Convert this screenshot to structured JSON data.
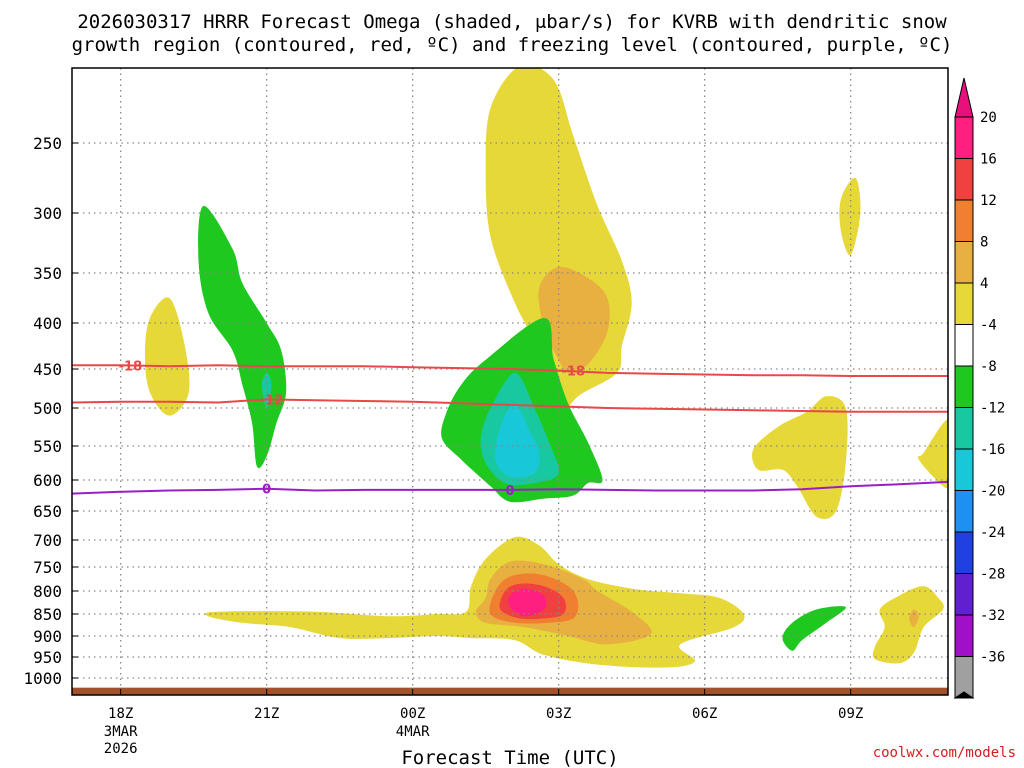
{
  "chart_data": {
    "type": "contour",
    "title_lines": [
      "2026030317 HRRR Forecast Omega (shaded, μbar/s) for KVRB with dendritic snow",
      "growth region (contoured, red, ºC) and freezing level (contoured, purple, ºC)"
    ],
    "xlabel": "Forecast Time (UTC)",
    "x_ticks": [
      {
        "label": "18Z",
        "hour": 0,
        "sub": [
          "3MAR",
          "2026"
        ]
      },
      {
        "label": "21Z",
        "hour": 3,
        "sub": []
      },
      {
        "label": "00Z",
        "hour": 6,
        "sub": [
          "4MAR"
        ]
      },
      {
        "label": "03Z",
        "hour": 9,
        "sub": []
      },
      {
        "label": "06Z",
        "hour": 12,
        "sub": []
      },
      {
        "label": "09Z",
        "hour": 15,
        "sub": []
      }
    ],
    "xlim_hours": [
      -1,
      17
    ],
    "y_ticks": [
      250,
      300,
      350,
      400,
      450,
      500,
      550,
      600,
      650,
      700,
      750,
      800,
      850,
      900,
      950,
      1000
    ],
    "ylim_hpa": [
      200,
      1040
    ],
    "colorbar": {
      "labels": [
        "20",
        "16",
        "12",
        "8",
        "4",
        "-4",
        "-8",
        "-12",
        "-16",
        "-20",
        "-24",
        "-28",
        "-32",
        "-36"
      ],
      "colors": [
        "#ff1f80",
        "#f04040",
        "#f08030",
        "#e8b040",
        "#e6d838",
        "#ffffff",
        "#1ec81e",
        "#18c8a0",
        "#18c8d8",
        "#1e90f0",
        "#2040e0",
        "#6020d0",
        "#a010c8",
        "#a0a0a0"
      ],
      "top_arrow_color": "#e8107a",
      "bottom_arrow_color": "#000000"
    },
    "regions": [
      {
        "name": "yellow-plume-upper",
        "range": "4 to 8",
        "color": "#e6d838",
        "points": [
          [
            8.9,
            205
          ],
          [
            9.3,
            245
          ],
          [
            9.8,
            295
          ],
          [
            10.3,
            340
          ],
          [
            10.5,
            380
          ],
          [
            10.3,
            425
          ],
          [
            10.2,
            455
          ],
          [
            9.4,
            485
          ],
          [
            8.9,
            520
          ],
          [
            8.7,
            470
          ],
          [
            8.6,
            430
          ],
          [
            8.1,
            380
          ],
          [
            7.6,
            320
          ],
          [
            7.5,
            270
          ],
          [
            7.6,
            225
          ],
          [
            8.2,
            195
          ]
        ]
      },
      {
        "name": "orange-core-upper",
        "range": "8 to 12",
        "color": "#e8b040",
        "points": [
          [
            9.0,
            345
          ],
          [
            9.6,
            355
          ],
          [
            10.0,
            375
          ],
          [
            10.0,
            410
          ],
          [
            9.6,
            445
          ],
          [
            9.2,
            455
          ],
          [
            9.0,
            440
          ],
          [
            8.7,
            405
          ],
          [
            8.6,
            365
          ]
        ]
      },
      {
        "name": "yellow-left-plume",
        "range": "4 to 8",
        "color": "#e6d838",
        "points": [
          [
            1.0,
            375
          ],
          [
            1.3,
            420
          ],
          [
            1.4,
            480
          ],
          [
            1.0,
            510
          ],
          [
            0.6,
            480
          ],
          [
            0.5,
            435
          ],
          [
            0.6,
            395
          ]
        ]
      },
      {
        "name": "yellow-right-blob",
        "range": "4 to 8",
        "color": "#e6d838",
        "points": [
          [
            13.5,
            525
          ],
          [
            14.1,
            505
          ],
          [
            14.5,
            485
          ],
          [
            14.9,
            500
          ],
          [
            14.9,
            575
          ],
          [
            14.7,
            650
          ],
          [
            14.3,
            660
          ],
          [
            13.9,
            610
          ],
          [
            13.6,
            585
          ],
          [
            13.1,
            585
          ],
          [
            13.0,
            555
          ]
        ]
      },
      {
        "name": "yellow-small-top-right",
        "range": "4 to 8",
        "color": "#e6d838",
        "points": [
          [
            14.8,
            290
          ],
          [
            15.1,
            275
          ],
          [
            15.2,
            300
          ],
          [
            15.0,
            335
          ],
          [
            14.8,
            315
          ]
        ]
      },
      {
        "name": "yellow-far-right",
        "range": "4 to 8",
        "color": "#e6d838",
        "points": [
          [
            16.5,
            560
          ],
          [
            16.9,
            520
          ],
          [
            17.0,
            525
          ],
          [
            17.0,
            600
          ],
          [
            16.9,
            610
          ],
          [
            16.4,
            570
          ]
        ]
      },
      {
        "name": "yellow-lower-broad",
        "range": "4 to 8",
        "color": "#e6d838",
        "points": [
          [
            2.0,
            845
          ],
          [
            4.0,
            845
          ],
          [
            5.5,
            855
          ],
          [
            6.5,
            850
          ],
          [
            7.1,
            845
          ],
          [
            7.2,
            790
          ],
          [
            7.5,
            735
          ],
          [
            8.1,
            695
          ],
          [
            8.6,
            710
          ],
          [
            9.0,
            745
          ],
          [
            9.6,
            775
          ],
          [
            10.5,
            795
          ],
          [
            11.5,
            805
          ],
          [
            12.3,
            815
          ],
          [
            12.8,
            850
          ],
          [
            12.6,
            880
          ],
          [
            11.5,
            920
          ],
          [
            11.8,
            960
          ],
          [
            11.2,
            975
          ],
          [
            9.8,
            968
          ],
          [
            8.7,
            945
          ],
          [
            8.1,
            910
          ],
          [
            7.2,
            905
          ],
          [
            6.5,
            900
          ],
          [
            5.5,
            905
          ],
          [
            4.5,
            905
          ],
          [
            3.5,
            880
          ],
          [
            2.5,
            870
          ],
          [
            1.8,
            855
          ]
        ]
      },
      {
        "name": "orange-lower",
        "range": "8 to 12",
        "color": "#e8b040",
        "points": [
          [
            7.5,
            815
          ],
          [
            7.6,
            775
          ],
          [
            8.0,
            740
          ],
          [
            8.7,
            745
          ],
          [
            9.5,
            775
          ],
          [
            9.8,
            800
          ],
          [
            10.5,
            845
          ],
          [
            10.9,
            895
          ],
          [
            10.0,
            920
          ],
          [
            9.2,
            900
          ],
          [
            8.3,
            880
          ],
          [
            7.5,
            870
          ],
          [
            7.3,
            845
          ]
        ]
      },
      {
        "name": "dark-orange-lower",
        "range": "12 to 16",
        "color": "#f08030",
        "points": [
          [
            7.7,
            800
          ],
          [
            8.0,
            770
          ],
          [
            8.6,
            765
          ],
          [
            9.2,
            790
          ],
          [
            9.4,
            825
          ],
          [
            9.3,
            860
          ],
          [
            8.8,
            870
          ],
          [
            8.1,
            870
          ],
          [
            7.6,
            850
          ]
        ]
      },
      {
        "name": "red-lower",
        "range": "16 to 20",
        "color": "#f04040",
        "points": [
          [
            7.9,
            800
          ],
          [
            8.2,
            785
          ],
          [
            8.7,
            790
          ],
          [
            9.1,
            815
          ],
          [
            9.1,
            850
          ],
          [
            8.7,
            860
          ],
          [
            8.2,
            860
          ],
          [
            7.8,
            840
          ]
        ]
      },
      {
        "name": "magenta-lower",
        "range": "above 20",
        "color": "#ff1f80",
        "points": [
          [
            8.0,
            810
          ],
          [
            8.3,
            795
          ],
          [
            8.7,
            810
          ],
          [
            8.7,
            840
          ],
          [
            8.3,
            855
          ],
          [
            8.0,
            835
          ]
        ]
      },
      {
        "name": "yellow-lower-right",
        "range": "4 to 8",
        "color": "#e6d838",
        "points": [
          [
            16.0,
            810
          ],
          [
            16.5,
            790
          ],
          [
            16.8,
            815
          ],
          [
            16.9,
            840
          ],
          [
            16.5,
            880
          ],
          [
            16.3,
            940
          ],
          [
            16.0,
            965
          ],
          [
            15.5,
            955
          ],
          [
            15.5,
            925
          ],
          [
            15.7,
            880
          ],
          [
            15.6,
            840
          ]
        ]
      },
      {
        "name": "orange-lower-right",
        "range": "8 to 12",
        "color": "#e8b040",
        "points": [
          [
            16.3,
            840
          ],
          [
            16.4,
            855
          ],
          [
            16.3,
            880
          ],
          [
            16.2,
            860
          ]
        ]
      },
      {
        "name": "green-left-streak",
        "range": "-4 to -8",
        "color": "#1ec81e",
        "points": [
          [
            1.7,
            295
          ],
          [
            2.3,
            330
          ],
          [
            2.5,
            360
          ],
          [
            3.0,
            400
          ],
          [
            3.3,
            430
          ],
          [
            3.4,
            480
          ],
          [
            3.2,
            520
          ],
          [
            3.0,
            565
          ],
          [
            2.8,
            580
          ],
          [
            2.7,
            520
          ],
          [
            2.5,
            470
          ],
          [
            2.3,
            430
          ],
          [
            1.8,
            390
          ],
          [
            1.6,
            340
          ]
        ]
      },
      {
        "name": "teal-left-streak",
        "range": "-8 to -12",
        "color": "#18c8a0",
        "points": [
          [
            3.0,
            455
          ],
          [
            3.1,
            470
          ],
          [
            3.0,
            500
          ],
          [
            2.9,
            470
          ]
        ]
      },
      {
        "name": "green-center",
        "range": "-4 to -8",
        "color": "#1ec81e",
        "points": [
          [
            8.7,
            395
          ],
          [
            8.9,
            440
          ],
          [
            9.2,
            495
          ],
          [
            9.6,
            545
          ],
          [
            9.9,
            600
          ],
          [
            9.6,
            605
          ],
          [
            9.3,
            625
          ],
          [
            8.7,
            630
          ],
          [
            8.0,
            635
          ],
          [
            7.6,
            610
          ],
          [
            7.3,
            590
          ],
          [
            7.0,
            570
          ],
          [
            6.6,
            540
          ],
          [
            6.7,
            505
          ],
          [
            7.0,
            470
          ],
          [
            7.5,
            440
          ]
        ]
      },
      {
        "name": "teal-center",
        "range": "-8 to -12",
        "color": "#18c8a0",
        "points": [
          [
            8.1,
            455
          ],
          [
            8.5,
            500
          ],
          [
            8.8,
            545
          ],
          [
            9.0,
            590
          ],
          [
            8.5,
            605
          ],
          [
            7.9,
            605
          ],
          [
            7.5,
            575
          ],
          [
            7.4,
            540
          ],
          [
            7.6,
            500
          ]
        ]
      },
      {
        "name": "cyan-center",
        "range": "-12 to -16",
        "color": "#18c8d8",
        "points": [
          [
            8.1,
            495
          ],
          [
            8.4,
            530
          ],
          [
            8.6,
            560
          ],
          [
            8.5,
            590
          ],
          [
            8.0,
            595
          ],
          [
            7.7,
            570
          ],
          [
            7.8,
            525
          ]
        ]
      },
      {
        "name": "green-lower-right",
        "range": "-4 to -8",
        "color": "#1ec81e",
        "points": [
          [
            13.8,
            870
          ],
          [
            14.3,
            840
          ],
          [
            14.9,
            835
          ],
          [
            14.5,
            870
          ],
          [
            14.0,
            910
          ],
          [
            13.8,
            935
          ],
          [
            13.6,
            905
          ]
        ]
      }
    ],
    "contours": [
      {
        "name": "dgz--18",
        "label": "-18",
        "color": "#e84848",
        "x": [
          -1,
          0,
          1,
          2,
          3,
          4,
          5,
          6,
          7,
          8,
          9,
          10,
          11,
          12,
          13,
          14,
          15,
          16,
          17
        ],
        "hpa": [
          446,
          446,
          447,
          446,
          447,
          447,
          447,
          448,
          449,
          450,
          452,
          455,
          456,
          457,
          458,
          458,
          459,
          459,
          459
        ],
        "label_positions": [
          [
            0.2,
            446
          ],
          [
            9.3,
            452
          ]
        ]
      },
      {
        "name": "dgz--12",
        "label": "-12",
        "color": "#e84848",
        "x": [
          -1,
          0,
          1,
          2,
          3,
          4,
          5,
          6,
          7,
          8,
          9,
          10,
          11,
          12,
          13,
          14,
          15,
          16,
          17
        ],
        "hpa": [
          493,
          492,
          492,
          493,
          489,
          490,
          491,
          492,
          494,
          496,
          498,
          500,
          501,
          502,
          503,
          504,
          505,
          505,
          505
        ],
        "label_positions": [
          [
            3.1,
            489
          ]
        ]
      },
      {
        "name": "freezing-0",
        "label": "0",
        "color": "#9a1ec8",
        "x": [
          -1,
          0,
          1,
          2,
          3,
          4,
          5,
          6,
          7,
          8,
          9,
          10,
          11,
          12,
          13,
          14,
          15,
          16,
          17
        ],
        "hpa": [
          622,
          619,
          617,
          616,
          614,
          617,
          616,
          616,
          616,
          616,
          615,
          616,
          617,
          617,
          617,
          615,
          610,
          607,
          603
        ],
        "label_positions": [
          [
            3.0,
            614
          ],
          [
            8.0,
            616
          ]
        ]
      }
    ],
    "terrain_top_hpa": 1023
  },
  "credit": "coolwx.com/models"
}
